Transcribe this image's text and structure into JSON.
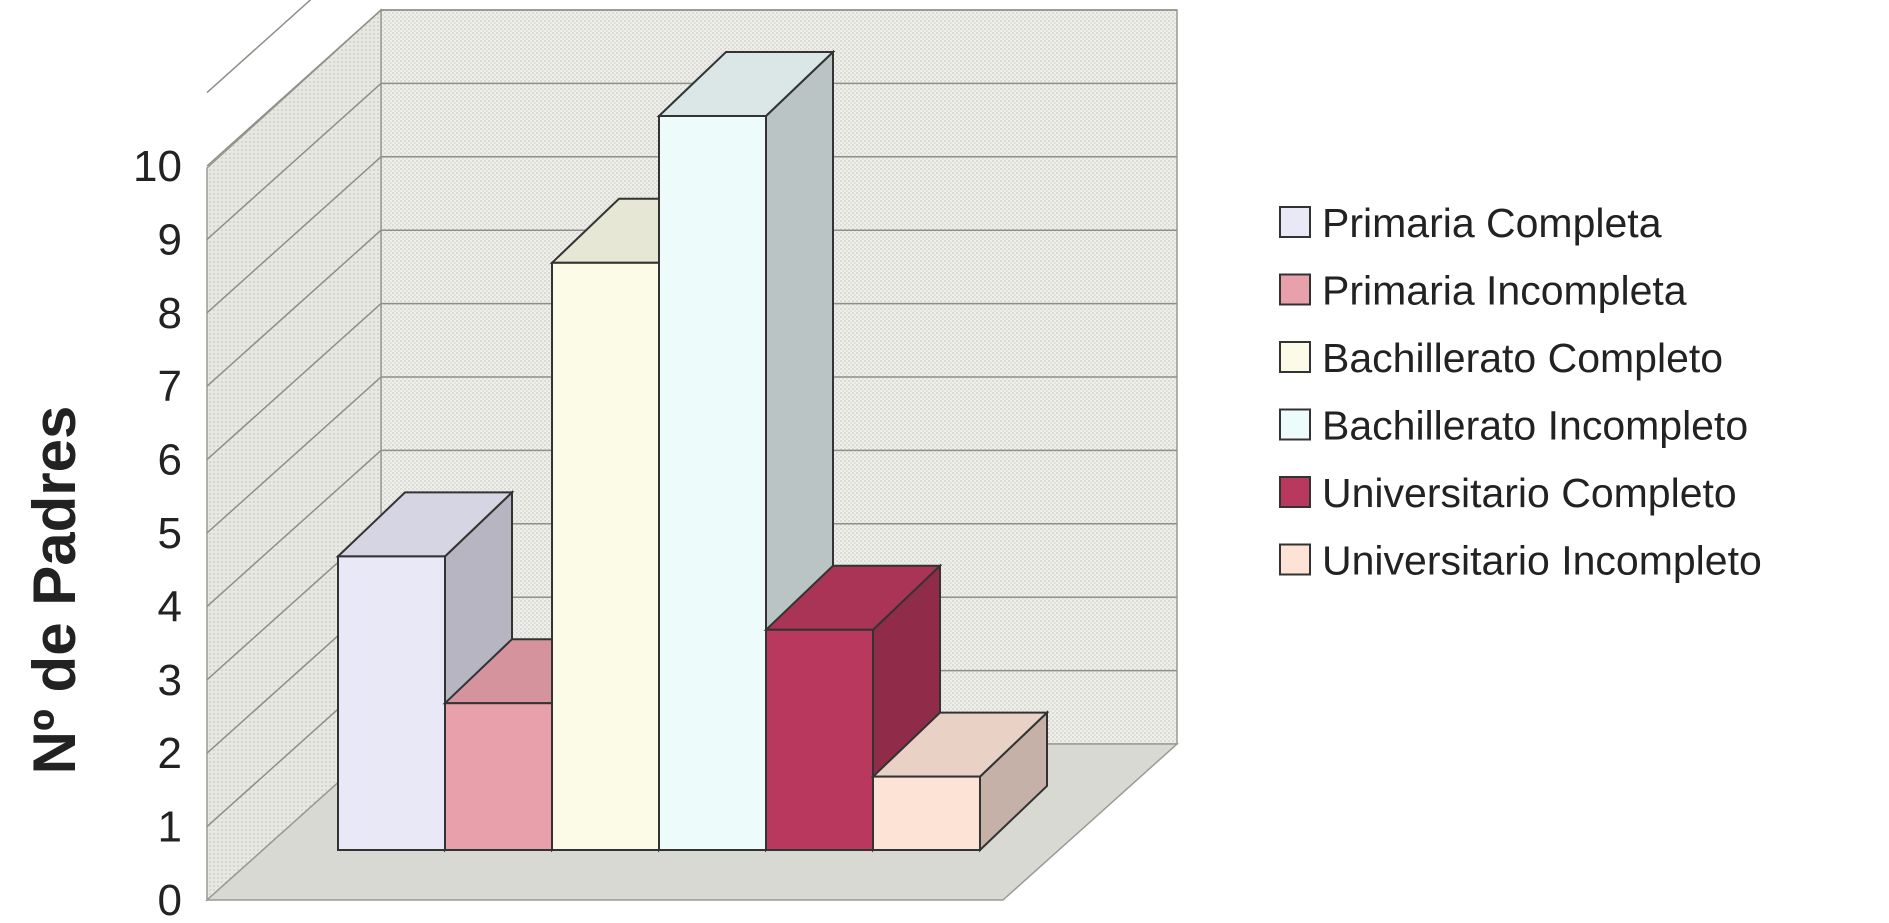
{
  "chart_data": {
    "type": "bar",
    "ylabel": "Nº de Padres",
    "ylim": [
      0,
      10
    ],
    "yticks": [
      0,
      1,
      2,
      3,
      4,
      5,
      6,
      7,
      8,
      9,
      10
    ],
    "grid": true,
    "legend_position": "right",
    "series": [
      {
        "name": "Primaria Completa",
        "value": 4,
        "color": "#e9e8f7"
      },
      {
        "name": "Primaria Incompleta",
        "value": 2,
        "color": "#e8a0ab"
      },
      {
        "name": "Bachillerato Completo",
        "value": 8,
        "color": "#fbfbe7"
      },
      {
        "name": "Bachillerato Incompleto",
        "value": 10,
        "color": "#eefbfb"
      },
      {
        "name": "Universitario Completo",
        "value": 3,
        "color": "#b8385e"
      },
      {
        "name": "Universitario Incompleto",
        "value": 1,
        "color": "#fde3d6"
      }
    ]
  }
}
